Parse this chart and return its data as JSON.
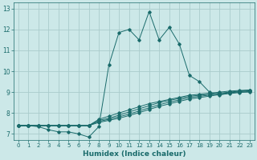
{
  "xlabel": "Humidex (Indice chaleur)",
  "ylabel": "",
  "xlim": [
    -0.5,
    23.5
  ],
  "ylim": [
    6.7,
    13.3
  ],
  "xticks": [
    0,
    1,
    2,
    3,
    4,
    5,
    6,
    7,
    8,
    9,
    10,
    11,
    12,
    13,
    14,
    15,
    16,
    17,
    18,
    19,
    20,
    21,
    22,
    23
  ],
  "yticks": [
    7,
    8,
    9,
    10,
    11,
    12,
    13
  ],
  "background_color": "#cce8e8",
  "grid_color": "#aacccc",
  "line_color": "#1a6b6b",
  "line1_x": [
    0,
    1,
    2,
    3,
    4,
    5,
    6,
    7,
    8,
    9,
    10,
    11,
    12,
    13,
    14,
    15,
    16,
    17,
    18,
    19,
    20,
    21,
    22,
    23
  ],
  "line1_y": [
    7.4,
    7.4,
    7.35,
    7.2,
    7.1,
    7.1,
    7.0,
    6.85,
    7.35,
    10.3,
    11.85,
    12.0,
    11.5,
    12.85,
    11.5,
    12.1,
    11.3,
    9.8,
    9.5,
    9.0,
    8.85,
    9.0,
    9.0,
    9.0
  ],
  "line2_x": [
    0,
    1,
    2,
    3,
    4,
    5,
    6,
    7,
    8,
    9,
    10,
    11,
    12,
    13,
    14,
    15,
    16,
    17,
    18,
    19,
    20,
    21,
    22,
    23
  ],
  "line2_y": [
    7.4,
    7.4,
    7.4,
    7.4,
    7.4,
    7.4,
    7.4,
    7.4,
    7.7,
    7.85,
    8.0,
    8.15,
    8.3,
    8.45,
    8.55,
    8.65,
    8.75,
    8.85,
    8.9,
    8.95,
    9.0,
    9.05,
    9.08,
    9.1
  ],
  "line3_x": [
    0,
    1,
    2,
    3,
    4,
    5,
    6,
    7,
    8,
    9,
    10,
    11,
    12,
    13,
    14,
    15,
    16,
    17,
    18,
    19,
    20,
    21,
    22,
    23
  ],
  "line3_y": [
    7.4,
    7.4,
    7.4,
    7.4,
    7.4,
    7.4,
    7.4,
    7.4,
    7.65,
    7.75,
    7.9,
    8.05,
    8.2,
    8.35,
    8.5,
    8.6,
    8.7,
    8.8,
    8.85,
    8.9,
    8.95,
    9.0,
    9.05,
    9.1
  ],
  "line4_x": [
    0,
    1,
    2,
    3,
    4,
    5,
    6,
    7,
    8,
    9,
    10,
    11,
    12,
    13,
    14,
    15,
    16,
    17,
    18,
    19,
    20,
    21,
    22,
    23
  ],
  "line4_y": [
    7.4,
    7.4,
    7.4,
    7.4,
    7.4,
    7.4,
    7.4,
    7.4,
    7.6,
    7.7,
    7.82,
    7.95,
    8.1,
    8.25,
    8.4,
    8.52,
    8.63,
    8.74,
    8.8,
    8.86,
    8.92,
    8.97,
    9.02,
    9.07
  ],
  "line5_x": [
    0,
    1,
    2,
    3,
    4,
    5,
    6,
    7,
    8,
    9,
    10,
    11,
    12,
    13,
    14,
    15,
    16,
    17,
    18,
    19,
    20,
    21,
    22,
    23
  ],
  "line5_y": [
    7.4,
    7.4,
    7.4,
    7.4,
    7.4,
    7.4,
    7.4,
    7.4,
    7.55,
    7.65,
    7.75,
    7.88,
    8.02,
    8.17,
    8.32,
    8.44,
    8.56,
    8.67,
    8.74,
    8.81,
    8.88,
    8.93,
    8.98,
    9.04
  ]
}
